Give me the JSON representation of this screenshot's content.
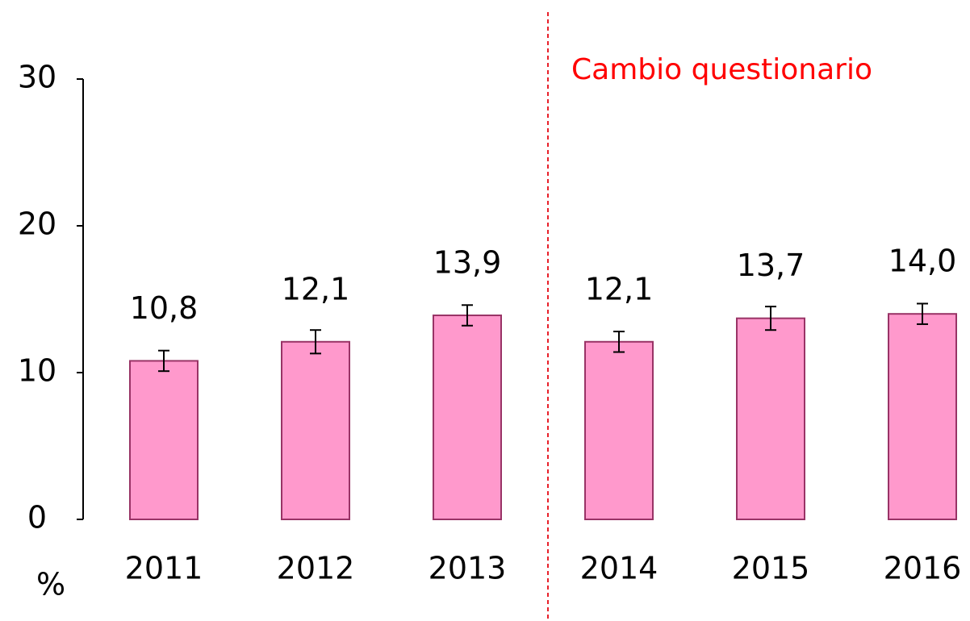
{
  "chart_data": {
    "type": "bar",
    "y_label": "%",
    "annotation": "Cambio questionario",
    "categories": [
      "2011",
      "2012",
      "2013",
      "2014",
      "2015",
      "2016"
    ],
    "values": [
      10.8,
      12.1,
      13.9,
      12.1,
      13.7,
      14.0
    ],
    "value_labels": [
      "10,8",
      "12,1",
      "13,9",
      "12,1",
      "13,7",
      "14,0"
    ],
    "errors": [
      0.7,
      0.8,
      0.7,
      0.7,
      0.8,
      0.7
    ],
    "color": "#ff99cc",
    "ylim": [
      0,
      30
    ],
    "yticks": [
      0,
      10,
      20,
      30
    ]
  }
}
